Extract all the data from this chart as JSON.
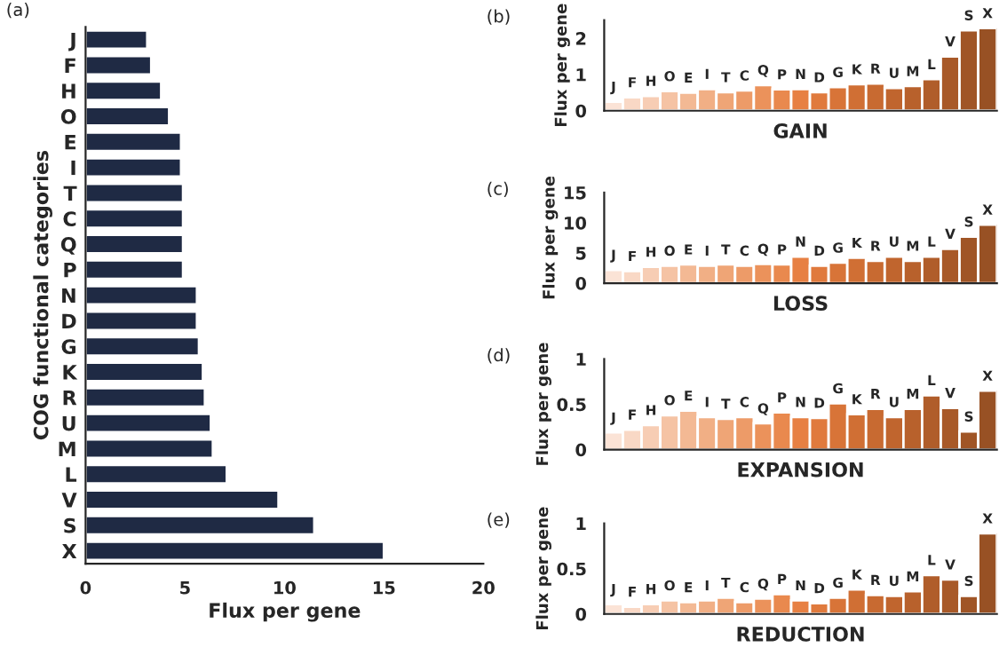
{
  "chart_data": [
    {
      "type": "bar",
      "orientation": "horizontal",
      "categories": [
        "J",
        "F",
        "H",
        "O",
        "E",
        "I",
        "T",
        "C",
        "Q",
        "P",
        "N",
        "D",
        "G",
        "K",
        "R",
        "U",
        "M",
        "L",
        "V",
        "S",
        "X"
      ],
      "values": [
        3.1,
        3.3,
        3.8,
        4.2,
        4.8,
        4.8,
        4.9,
        4.9,
        4.9,
        4.9,
        5.6,
        5.6,
        5.7,
        5.9,
        6.0,
        6.3,
        6.4,
        7.1,
        9.7,
        11.5,
        15.0
      ],
      "color": "#1f2a44",
      "xlim": [
        0,
        20
      ],
      "xticks": [
        0,
        5,
        10,
        15,
        20
      ],
      "xlabel": "Flux per gene",
      "ylabel": "COG functional categories",
      "annotations": [
        "(a)"
      ],
      "grid": false
    },
    {
      "type": "bar",
      "categories": [
        "J",
        "F",
        "H",
        "O",
        "E",
        "I",
        "T",
        "C",
        "Q",
        "P",
        "N",
        "D",
        "G",
        "K",
        "R",
        "U",
        "M",
        "L",
        "V",
        "S",
        "X"
      ],
      "values": [
        0.25,
        0.37,
        0.41,
        0.54,
        0.5,
        0.6,
        0.51,
        0.56,
        0.71,
        0.59,
        0.6,
        0.51,
        0.65,
        0.73,
        0.75,
        0.63,
        0.68,
        0.87,
        1.5,
        2.22,
        2.28
      ],
      "colors": [
        "#fbe3d6",
        "#f9d8c5",
        "#f7cdb4",
        "#f5c3a4",
        "#f3b994",
        "#f1af85",
        "#efa576",
        "#ed9b68",
        "#eb925b",
        "#e9894e",
        "#e78043",
        "#e07a3d",
        "#d87438",
        "#d06f34",
        "#c86a31",
        "#c0652e",
        "#b8612c",
        "#b05d2a",
        "#a85928",
        "#a05526",
        "#985124"
      ],
      "ylim": [
        0,
        2.5
      ],
      "yticks": [
        0,
        1,
        2
      ],
      "ylabel": "Flux per gene",
      "xlabel": "GAIN",
      "annotations": [
        "(b)"
      ],
      "grid": false
    },
    {
      "type": "bar",
      "categories": [
        "J",
        "F",
        "H",
        "O",
        "E",
        "I",
        "T",
        "C",
        "Q",
        "P",
        "N",
        "D",
        "G",
        "K",
        "R",
        "U",
        "M",
        "L",
        "V",
        "S",
        "X"
      ],
      "values": [
        2.2,
        2.0,
        2.7,
        2.9,
        3.1,
        2.9,
        3.1,
        2.9,
        3.2,
        3.1,
        4.4,
        2.9,
        3.4,
        4.2,
        3.7,
        4.4,
        3.7,
        4.4,
        5.7,
        7.7,
        9.7
      ],
      "colors": [
        "#fbe3d6",
        "#f9d8c5",
        "#f7cdb4",
        "#f5c3a4",
        "#f3b994",
        "#f1af85",
        "#efa576",
        "#ed9b68",
        "#eb925b",
        "#e9894e",
        "#e78043",
        "#e07a3d",
        "#d87438",
        "#d06f34",
        "#c86a31",
        "#c0652e",
        "#b8612c",
        "#b05d2a",
        "#a85928",
        "#a05526",
        "#985124"
      ],
      "ylim": [
        0,
        15
      ],
      "yticks": [
        0,
        5,
        10,
        15
      ],
      "ylabel": "Flux per gene",
      "xlabel": "LOSS",
      "annotations": [
        "(c)"
      ],
      "grid": false
    },
    {
      "type": "bar",
      "categories": [
        "J",
        "F",
        "H",
        "O",
        "E",
        "I",
        "T",
        "C",
        "Q",
        "P",
        "N",
        "D",
        "G",
        "K",
        "R",
        "U",
        "M",
        "L",
        "V",
        "S",
        "X"
      ],
      "values": [
        0.19,
        0.22,
        0.27,
        0.38,
        0.43,
        0.36,
        0.34,
        0.36,
        0.29,
        0.41,
        0.36,
        0.35,
        0.51,
        0.39,
        0.45,
        0.36,
        0.45,
        0.6,
        0.46,
        0.2,
        0.65
      ],
      "colors": [
        "#fbe3d6",
        "#f9d8c5",
        "#f7cdb4",
        "#f5c3a4",
        "#f3b994",
        "#f1af85",
        "#efa576",
        "#ed9b68",
        "#eb925b",
        "#e9894e",
        "#e78043",
        "#e07a3d",
        "#d87438",
        "#d06f34",
        "#c86a31",
        "#c0652e",
        "#b8612c",
        "#b05d2a",
        "#a85928",
        "#a05526",
        "#985124"
      ],
      "ylim": [
        0,
        1
      ],
      "yticks": [
        0,
        0.5,
        1
      ],
      "ylabel": "Flux per gene",
      "xlabel": "EXPANSION",
      "annotations": [
        "(d)"
      ],
      "grid": false
    },
    {
      "type": "bar",
      "categories": [
        "J",
        "F",
        "H",
        "O",
        "E",
        "I",
        "T",
        "C",
        "Q",
        "P",
        "N",
        "D",
        "G",
        "K",
        "R",
        "U",
        "M",
        "L",
        "V",
        "S",
        "X"
      ],
      "values": [
        0.11,
        0.08,
        0.11,
        0.15,
        0.13,
        0.15,
        0.18,
        0.13,
        0.17,
        0.22,
        0.15,
        0.12,
        0.18,
        0.27,
        0.21,
        0.2,
        0.25,
        0.43,
        0.38,
        0.2,
        0.89
      ],
      "colors": [
        "#fbe3d6",
        "#f9d8c5",
        "#f7cdb4",
        "#f5c3a4",
        "#f3b994",
        "#f1af85",
        "#efa576",
        "#ed9b68",
        "#eb925b",
        "#e9894e",
        "#e78043",
        "#e07a3d",
        "#d87438",
        "#d06f34",
        "#c86a31",
        "#c0652e",
        "#b8612c",
        "#b05d2a",
        "#a85928",
        "#a05526",
        "#985124"
      ],
      "ylim": [
        0,
        1
      ],
      "yticks": [
        0,
        0.5,
        1
      ],
      "ylabel": "Flux per gene",
      "xlabel": "REDUCTION",
      "annotations": [
        "(e)"
      ],
      "grid": false
    }
  ]
}
